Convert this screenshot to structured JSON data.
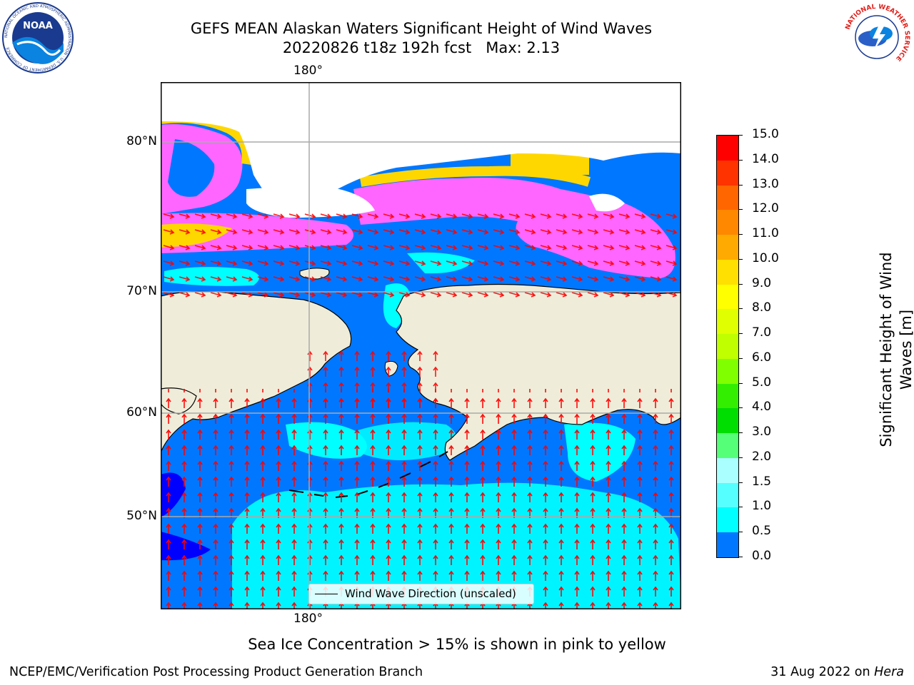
{
  "title": {
    "line1": "GEFS MEAN Alaskan Waters Significant Height of Wind Waves",
    "line2": "20220826 t18z 192h fcst   Max: 2.13"
  },
  "logos": {
    "noaa_text": "NOAA",
    "noaa_ring": "NATIONAL OCEANIC AND ATMOSPHERIC ADMINISTRATION · U.S. DEPARTMENT OF COMMERCE",
    "nws_ring": "NATIONAL WEATHER SERVICE"
  },
  "map": {
    "lon_label_top": "180°",
    "lon_label_bottom": "180°",
    "lat_labels": [
      "80°N",
      "70°N",
      "60°N",
      "50°N"
    ],
    "legend_label": "Wind Wave Direction (unscaled)",
    "colors": {
      "land": "#efedd9",
      "ocean_low": "#0077ff",
      "ocean_mid": "#00ffff",
      "ice": "#ff66ff",
      "ice_edge": "#ffd700",
      "arrow": "#ff0000"
    }
  },
  "colorbar": {
    "title_line1": "Significant Height of Wind",
    "title_line2": "Waves [m]",
    "ticks": [
      "15.0",
      "14.0",
      "13.0",
      "12.0",
      "11.0",
      "10.0",
      "9.0",
      "8.0",
      "7.0",
      "6.0",
      "5.0",
      "4.0",
      "3.0",
      "2.0",
      "1.5",
      "1.0",
      "0.5",
      "0.0"
    ],
    "segment_colors": [
      "#ff0000",
      "#ff3300",
      "#ff6600",
      "#ff8800",
      "#ffaa00",
      "#ffe000",
      "#ffff00",
      "#e0ff00",
      "#c0ff00",
      "#80ff00",
      "#33ee00",
      "#00dd00",
      "#55ff77",
      "#aaffff",
      "#55ffff",
      "#00ffff",
      "#0077ff",
      "#0000ff"
    ]
  },
  "note": "Sea Ice Concentration > 15% is shown in pink to yellow",
  "footer": {
    "left": "NCEP/EMC/Verification Post Processing Product Generation Branch",
    "right_prefix": "31 Aug 2022 on ",
    "right_host": "Hera"
  }
}
